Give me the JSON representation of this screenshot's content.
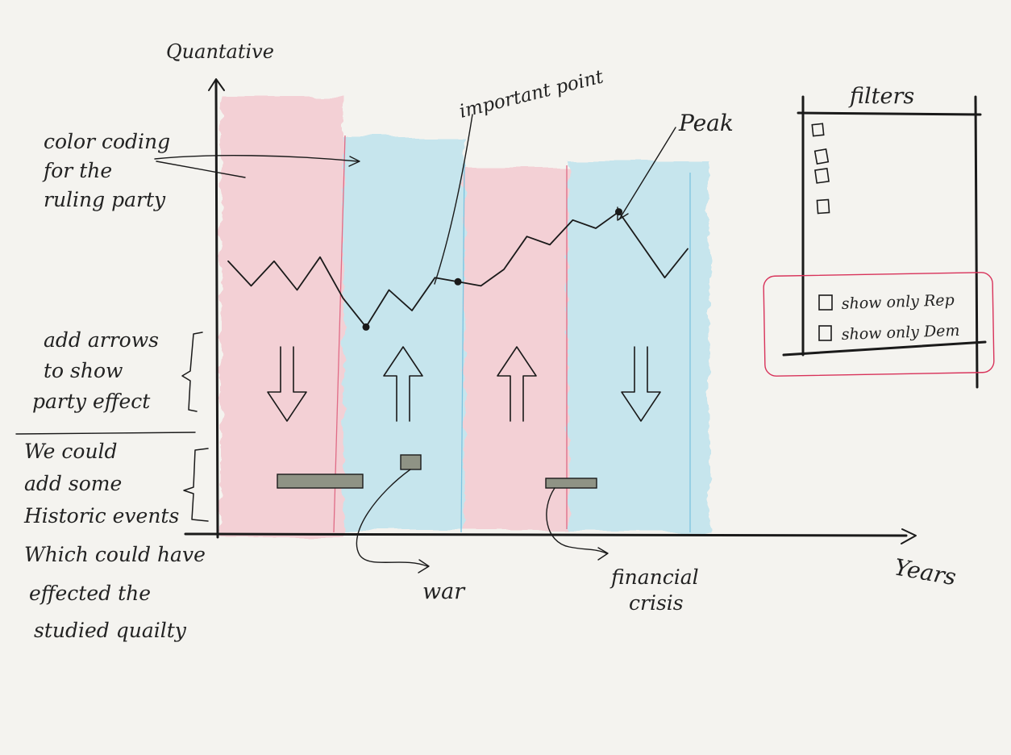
{
  "axes": {
    "y_label": "Quantative",
    "x_label": "Years"
  },
  "annotations": {
    "color_coding": [
      "color coding",
      "for the",
      "ruling party"
    ],
    "important_point": "important point",
    "peak": "Peak",
    "arrows_note": [
      "add arrows",
      "to show",
      "party effect"
    ],
    "events_note": [
      "We could",
      "add some",
      "Historic events",
      "Which could have",
      "effected the",
      "studied quailty"
    ],
    "war": "war",
    "financial_crisis": [
      "financial",
      "crisis"
    ]
  },
  "filters": {
    "title": "filters",
    "empty_boxes": 4,
    "options": [
      {
        "label": "show only Rep",
        "checked": false
      },
      {
        "label": "show only Dem",
        "checked": false
      }
    ],
    "highlight_color": "#d8325a"
  },
  "colors": {
    "republican": "#f3b9c5",
    "democrat": "#a9dced",
    "event_bar": "#8f9385"
  },
  "chart_data": {
    "type": "line",
    "title": "",
    "xlabel": "Years",
    "ylabel": "Quantative",
    "note": "hand-drawn sketch, no numeric scale",
    "series": [
      {
        "values": [
          0.62,
          0.56,
          0.62,
          0.55,
          0.63,
          0.53,
          0.46,
          0.55,
          0.5,
          0.58,
          0.57,
          0.56,
          0.6,
          0.68,
          0.66,
          0.72,
          0.7,
          0.74,
          0.66,
          0.58,
          0.65
        ]
      }
    ],
    "marked_points": [
      {
        "index": 6,
        "label": ""
      },
      {
        "index": 10,
        "label": "important point"
      },
      {
        "index": 17,
        "label": "Peak"
      }
    ],
    "party_periods": [
      {
        "party": "Rep",
        "effect": "down"
      },
      {
        "party": "Dem",
        "effect": "up"
      },
      {
        "party": "Rep",
        "effect": "up"
      },
      {
        "party": "Dem",
        "effect": "down"
      }
    ],
    "events": [
      {
        "label": ""
      },
      {
        "label": "war"
      },
      {
        "label": "financial crisis"
      }
    ]
  }
}
